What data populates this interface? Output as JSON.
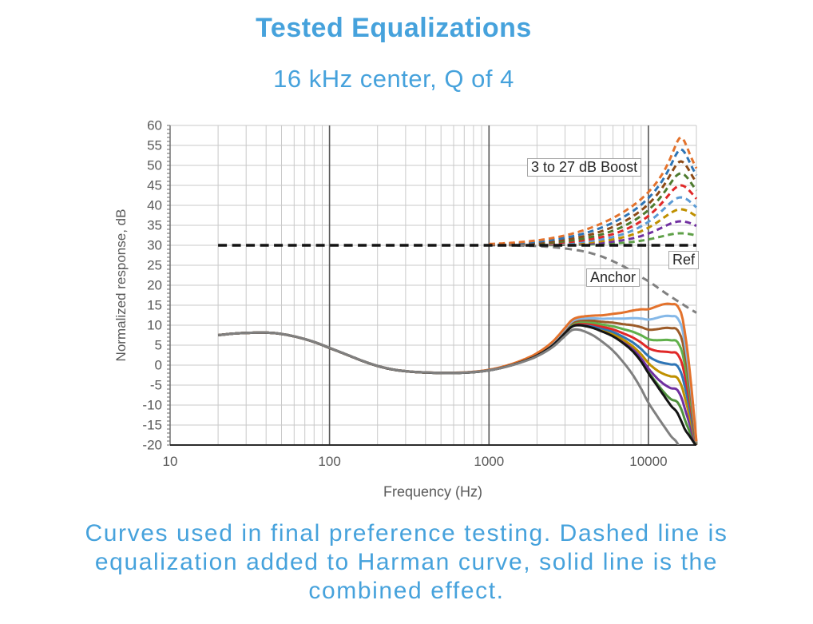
{
  "page": {
    "background": "#ffffff",
    "accent_color": "#46A2DC"
  },
  "chart_data": {
    "type": "line",
    "title": "Tested Equalizations",
    "subtitle": "16 kHz center, Q of 4",
    "caption": "Curves used in final preference testing. Dashed line is\nequalization added to Harman curve, solid line is the\ncombined effect.",
    "xlabel": "Frequency (Hz)",
    "ylabel": "Normalized response, dB",
    "x_scale": "log",
    "xlim": [
      10,
      20000
    ],
    "ylim": [
      -20,
      60
    ],
    "y_tick_step": 5,
    "x_major_ticks": [
      10,
      100,
      1000,
      10000
    ],
    "grid": true,
    "annotations": {
      "boost": "3 to 27 dB Boost",
      "ref": "Ref",
      "anchor": "Anchor"
    },
    "eq": {
      "center_hz": 16000,
      "q": 4,
      "baseline_db": 30,
      "boosts_db": [
        3,
        6,
        9,
        12,
        15,
        18,
        21,
        24,
        27
      ]
    },
    "boost_styles": [
      {
        "db": 3,
        "dash_color": "#5FA049",
        "solid_color": "#4E8F3C"
      },
      {
        "db": 6,
        "dash_color": "#7030A0",
        "solid_color": "#7030A0"
      },
      {
        "db": 9,
        "dash_color": "#BF9000",
        "solid_color": "#BF9000"
      },
      {
        "db": 12,
        "dash_color": "#5B9BD5",
        "solid_color": "#2E75B6"
      },
      {
        "db": 15,
        "dash_color": "#E02828",
        "solid_color": "#E02828"
      },
      {
        "db": 18,
        "dash_color": "#4E7B2F",
        "solid_color": "#5FB04A"
      },
      {
        "db": 21,
        "dash_color": "#8C4A17",
        "solid_color": "#9C5B28"
      },
      {
        "db": 24,
        "dash_color": "#2E75B6",
        "solid_color": "#85B8E8"
      },
      {
        "db": 27,
        "dash_color": "#E3722C",
        "solid_color": "#E3722C"
      }
    ],
    "ref_series": {
      "label": "Ref",
      "color": "#141414",
      "level_db": 30
    },
    "anchor_series": {
      "label": "Anchor",
      "color": "#808080"
    },
    "harman_base_db": [
      [
        20,
        7.5
      ],
      [
        25,
        7.9
      ],
      [
        32,
        8.1
      ],
      [
        42,
        8.1
      ],
      [
        50,
        7.8
      ],
      [
        63,
        7.0
      ],
      [
        80,
        5.8
      ],
      [
        100,
        4.3
      ],
      [
        125,
        2.8
      ],
      [
        160,
        1.1
      ],
      [
        200,
        -0.2
      ],
      [
        250,
        -1.1
      ],
      [
        315,
        -1.6
      ],
      [
        400,
        -1.85
      ],
      [
        500,
        -1.95
      ],
      [
        630,
        -1.95
      ],
      [
        800,
        -1.75
      ],
      [
        1000,
        -1.3
      ],
      [
        1250,
        -0.5
      ],
      [
        1600,
        0.8
      ],
      [
        2000,
        2.4
      ],
      [
        2500,
        4.9
      ],
      [
        3000,
        8.0
      ],
      [
        3300,
        9.6
      ],
      [
        3600,
        10.0
      ],
      [
        4000,
        9.8
      ],
      [
        4500,
        9.3
      ],
      [
        5000,
        8.6
      ],
      [
        6000,
        7.2
      ],
      [
        7000,
        5.4
      ],
      [
        8000,
        3.4
      ],
      [
        9000,
        0.9
      ],
      [
        10000,
        -2.0
      ],
      [
        11000,
        -4.4
      ],
      [
        12000,
        -6.6
      ],
      [
        13000,
        -8.6
      ],
      [
        14000,
        -10.4
      ],
      [
        15000,
        -11.6
      ],
      [
        16000,
        -13.8
      ],
      [
        17000,
        -16.2
      ],
      [
        18000,
        -17.6
      ],
      [
        19000,
        -19.0
      ],
      [
        20000,
        -20.3
      ]
    ],
    "anchor_dashed_delta_db": [
      [
        20,
        0
      ],
      [
        1000,
        0
      ],
      [
        2000,
        -0.2
      ],
      [
        3000,
        -0.8
      ],
      [
        4000,
        -1.6
      ],
      [
        5000,
        -2.7
      ],
      [
        6000,
        -4.0
      ],
      [
        7000,
        -5.3
      ],
      [
        8000,
        -6.6
      ],
      [
        9000,
        -7.9
      ],
      [
        10000,
        -9.0
      ],
      [
        11000,
        -10.1
      ],
      [
        12000,
        -11.2
      ],
      [
        14000,
        -13.0
      ],
      [
        16000,
        -14.5
      ],
      [
        18000,
        -15.8
      ],
      [
        20000,
        -16.9
      ]
    ],
    "anchor_solid_delta_db": [
      [
        20,
        0
      ],
      [
        1000,
        0
      ],
      [
        2000,
        -0.2
      ],
      [
        3000,
        -0.7
      ],
      [
        4000,
        -1.4
      ],
      [
        5000,
        -2.4
      ],
      [
        6000,
        -3.6
      ],
      [
        7000,
        -4.8
      ],
      [
        8000,
        -5.9
      ],
      [
        9000,
        -6.8
      ],
      [
        10000,
        -7.4
      ],
      [
        12000,
        -7.6
      ],
      [
        15000,
        -7.6
      ],
      [
        20000,
        -7.6
      ]
    ]
  }
}
